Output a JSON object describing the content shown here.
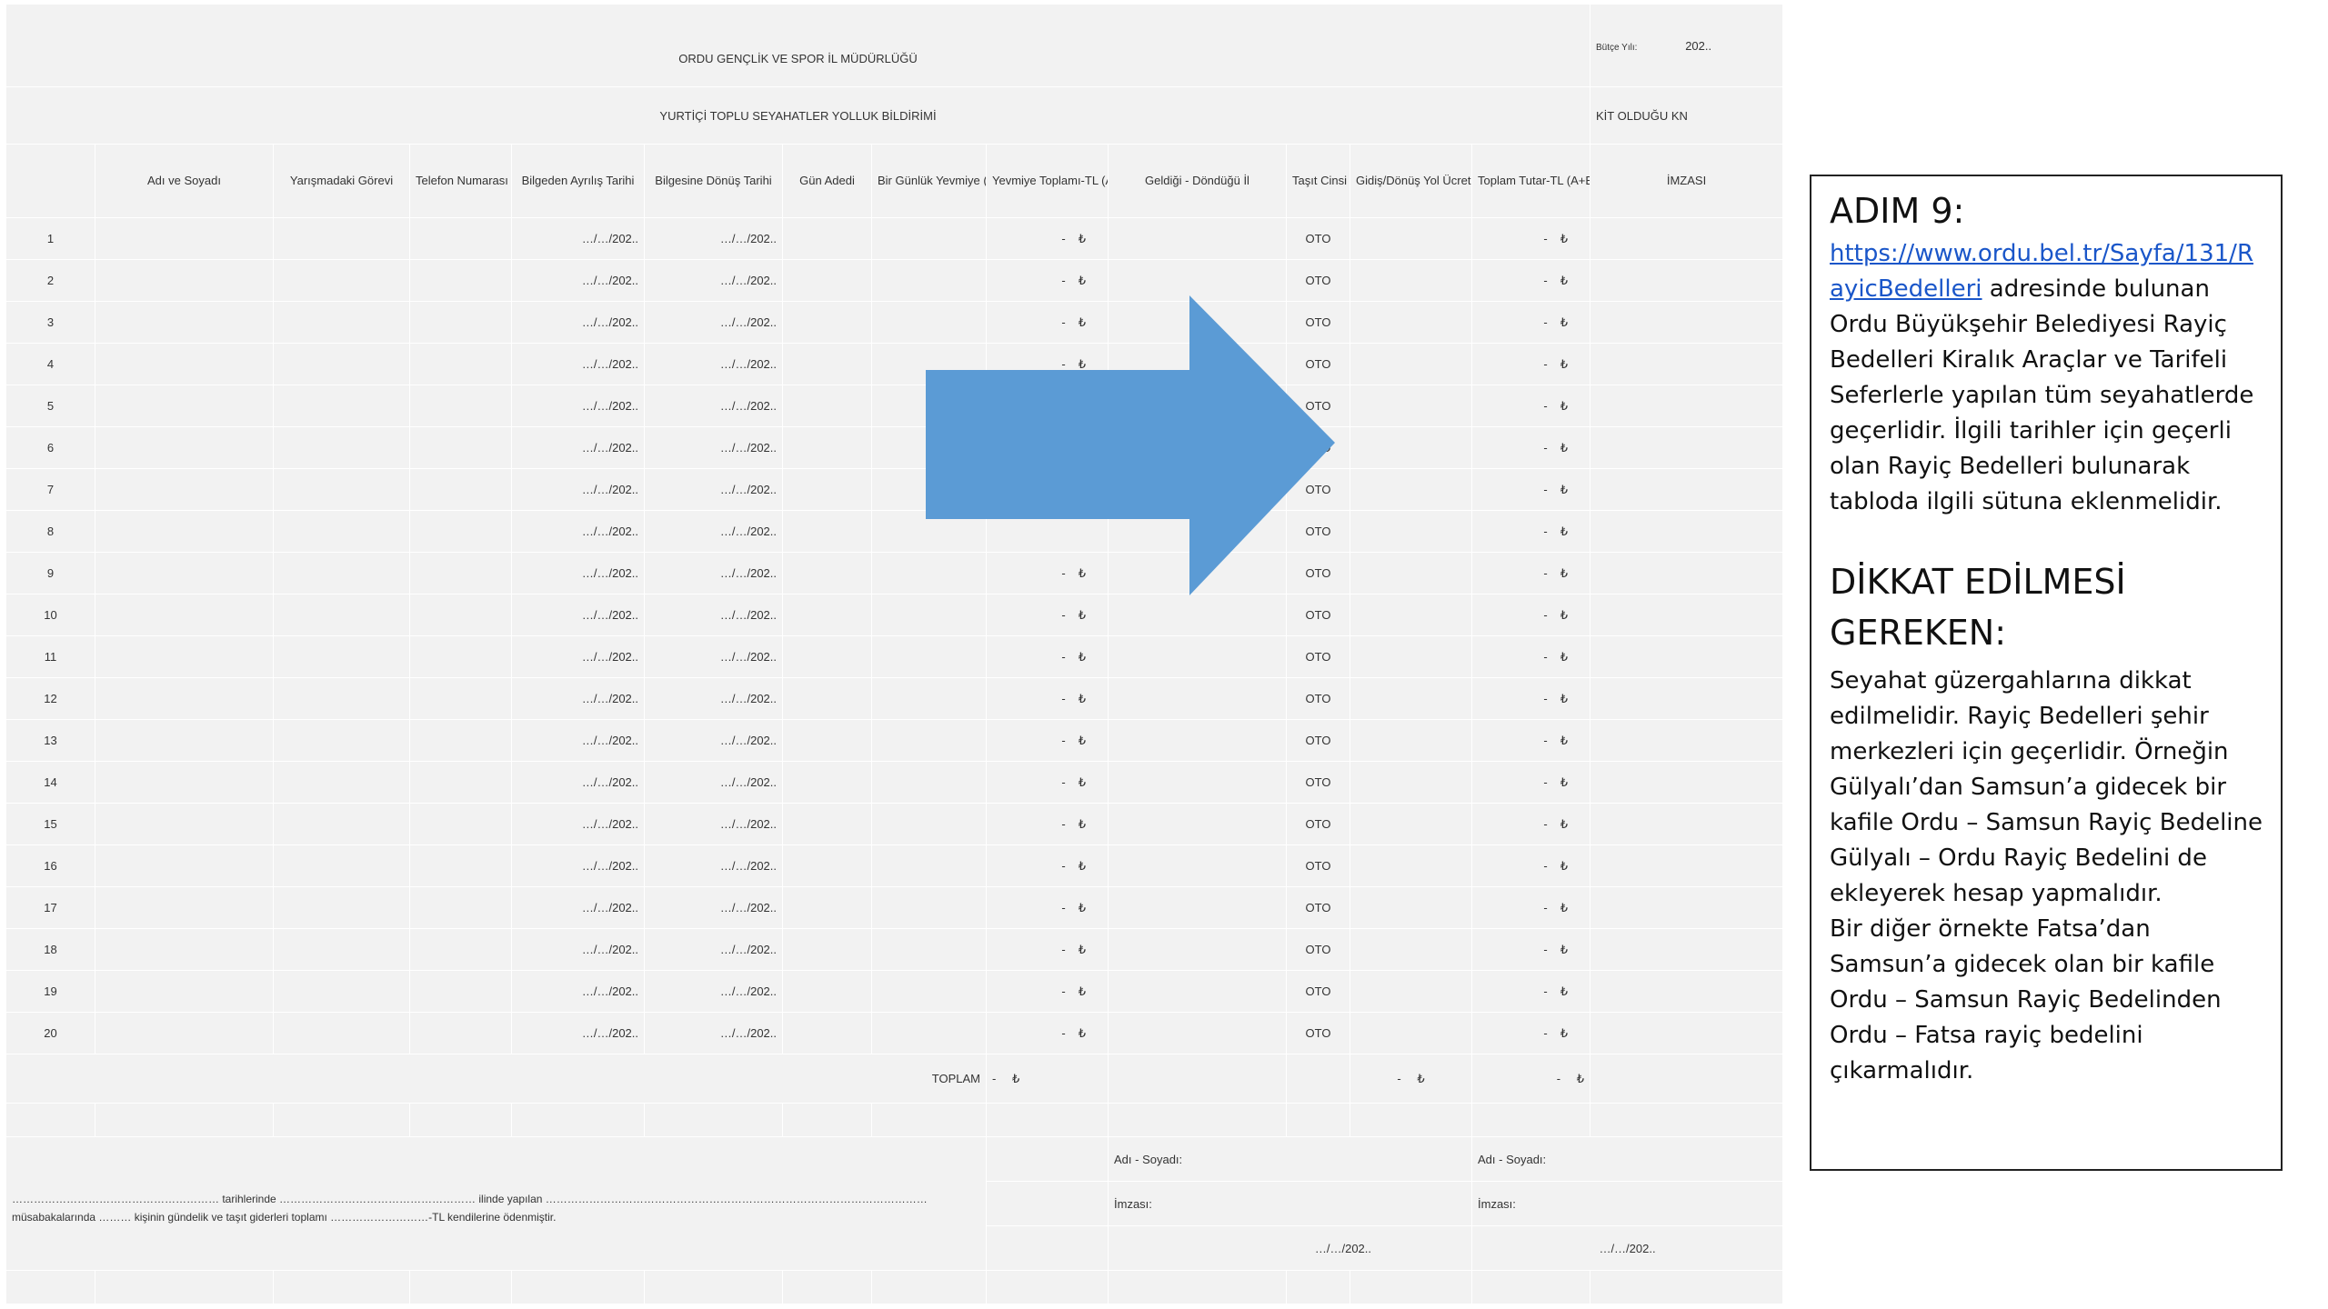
{
  "form": {
    "title": "ORDU GENÇLİK VE SPOR İL MÜDÜRLÜĞÜ",
    "subtitle": "YURTİÇİ TOPLU SEYAHATLER YOLLUK BİLDİRİMİ",
    "budget_year_label": "Bütçe Yılı:",
    "budget_year_value": "202..",
    "kit_label": "KİT OLDUĞU KN"
  },
  "columns": [
    "",
    "Adı ve Soyadı",
    "Yarışmadaki Görevi",
    "Telefon Numarası",
    "Bilgeden Ayrılış Tarihi",
    "Bilgesine Dönüş Tarihi",
    "Gün Adedi",
    "Bir Günlük Yevmiye (TL)",
    "Yevmiye Toplamı-TL (A)",
    "Geldiği - Döndüğü İl",
    "Taşıt Cinsi",
    "Gidiş/Dönüş Yol Ücreti-TL (B)",
    "Toplam Tutar-TL (A+B)",
    "İMZASI"
  ],
  "rows": [
    {
      "no": "1",
      "dep": "…/…/202..",
      "ret": "…/…/202..",
      "a": "-",
      "a_cur": "₺",
      "vehicle": "OTO",
      "total": "-",
      "total_cur": "₺"
    },
    {
      "no": "2",
      "dep": "…/…/202..",
      "ret": "…/…/202..",
      "a": "-",
      "a_cur": "₺",
      "vehicle": "OTO",
      "total": "-",
      "total_cur": "₺"
    },
    {
      "no": "3",
      "dep": "…/…/202..",
      "ret": "…/…/202..",
      "a": "-",
      "a_cur": "₺",
      "vehicle": "OTO",
      "total": "-",
      "total_cur": "₺"
    },
    {
      "no": "4",
      "dep": "…/…/202..",
      "ret": "…/…/202..",
      "a": "-",
      "a_cur": "₺",
      "vehicle": "OTO",
      "total": "-",
      "total_cur": "₺"
    },
    {
      "no": "5",
      "dep": "…/…/202..",
      "ret": "…/…/202..",
      "a": "",
      "a_cur": "",
      "vehicle": "OTO",
      "total": "-",
      "total_cur": "₺"
    },
    {
      "no": "6",
      "dep": "…/…/202..",
      "ret": "…/…/202..",
      "a": "",
      "a_cur": "",
      "vehicle": "OTO",
      "total": "-",
      "total_cur": "₺"
    },
    {
      "no": "7",
      "dep": "…/…/202..",
      "ret": "…/…/202..",
      "a": "",
      "a_cur": "",
      "vehicle": "OTO",
      "total": "-",
      "total_cur": "₺"
    },
    {
      "no": "8",
      "dep": "…/…/202..",
      "ret": "…/…/202..",
      "a": "",
      "a_cur": "",
      "vehicle": "OTO",
      "total": "-",
      "total_cur": "₺"
    },
    {
      "no": "9",
      "dep": "…/…/202..",
      "ret": "…/…/202..",
      "a": "-",
      "a_cur": "₺",
      "vehicle": "OTO",
      "total": "-",
      "total_cur": "₺"
    },
    {
      "no": "10",
      "dep": "…/…/202..",
      "ret": "…/…/202..",
      "a": "-",
      "a_cur": "₺",
      "vehicle": "OTO",
      "total": "-",
      "total_cur": "₺"
    },
    {
      "no": "11",
      "dep": "…/…/202..",
      "ret": "…/…/202..",
      "a": "-",
      "a_cur": "₺",
      "vehicle": "OTO",
      "total": "-",
      "total_cur": "₺"
    },
    {
      "no": "12",
      "dep": "…/…/202..",
      "ret": "…/…/202..",
      "a": "-",
      "a_cur": "₺",
      "vehicle": "OTO",
      "total": "-",
      "total_cur": "₺"
    },
    {
      "no": "13",
      "dep": "…/…/202..",
      "ret": "…/…/202..",
      "a": "-",
      "a_cur": "₺",
      "vehicle": "OTO",
      "total": "-",
      "total_cur": "₺"
    },
    {
      "no": "14",
      "dep": "…/…/202..",
      "ret": "…/…/202..",
      "a": "-",
      "a_cur": "₺",
      "vehicle": "OTO",
      "total": "-",
      "total_cur": "₺"
    },
    {
      "no": "15",
      "dep": "…/…/202..",
      "ret": "…/…/202..",
      "a": "-",
      "a_cur": "₺",
      "vehicle": "OTO",
      "total": "-",
      "total_cur": "₺"
    },
    {
      "no": "16",
      "dep": "…/…/202..",
      "ret": "…/…/202..",
      "a": "-",
      "a_cur": "₺",
      "vehicle": "OTO",
      "total": "-",
      "total_cur": "₺"
    },
    {
      "no": "17",
      "dep": "…/…/202..",
      "ret": "…/…/202..",
      "a": "-",
      "a_cur": "₺",
      "vehicle": "OTO",
      "total": "-",
      "total_cur": "₺"
    },
    {
      "no": "18",
      "dep": "…/…/202..",
      "ret": "…/…/202..",
      "a": "-",
      "a_cur": "₺",
      "vehicle": "OTO",
      "total": "-",
      "total_cur": "₺"
    },
    {
      "no": "19",
      "dep": "…/…/202..",
      "ret": "…/…/202..",
      "a": "-",
      "a_cur": "₺",
      "vehicle": "OTO",
      "total": "-",
      "total_cur": "₺"
    },
    {
      "no": "20",
      "dep": "…/…/202..",
      "ret": "…/…/202..",
      "a": "-",
      "a_cur": "₺",
      "vehicle": "OTO",
      "total": "-",
      "total_cur": "₺"
    }
  ],
  "summary": {
    "label": "TOPLAM",
    "a_value": "-",
    "a_cur": "₺",
    "b_value": "-",
    "b_cur": "₺",
    "total_value": "-",
    "total_cur": "₺"
  },
  "footer": {
    "line1": "………………………………………………… tarihlerinde ……………………………………………… ilinde yapılan ……………………………………………………………………………………………",
    "line2": "müsabakalarında ……… kişinin gündelik ve taşıt giderleri toplamı ………………………-TL kendilerine ödenmiştir.",
    "left_name_label": "Adı - Soyadı:",
    "left_sign_label": "İmzası:",
    "left_date": "…/…/202..",
    "right_name_label": "Adı - Soyadı:",
    "right_sign_label": "İmzası:",
    "right_date": "…/…/202.."
  },
  "arrow": {
    "color": "#5b9bd5",
    "icon": "right-arrow-icon"
  },
  "info": {
    "step_title": "ADIM 9:",
    "link_text": "https://www.ordu.bel.tr/Sayfa/131/RayicBedelleri",
    "step_text": " adresinde bulunan Ordu Büyükşehir Belediyesi Rayiç Bedelleri Kiralık Araçlar ve Tarifeli Seferlerle yapılan tüm seyahatlerde geçerlidir. İlgili tarihler için geçerli olan Rayiç Bedelleri bulunarak tabloda ilgili sütuna eklenmelidir.",
    "warning_title": "DİKKAT EDİLMESİ GEREKEN:",
    "warning_text_1": "Seyahat güzergahlarına dikkat edilmelidir. Rayiç Bedelleri şehir merkezleri için geçerlidir. Örneğin Gülyalı’dan Samsun’a gidecek bir kafile Ordu – Samsun Rayiç Bedeline Gülyalı – Ordu Rayiç Bedelini de ekleyerek hesap yapmalıdır.",
    "warning_text_2": "Bir diğer örnekte Fatsa’dan Samsun’a gidecek olan bir kafile Ordu – Samsun Rayiç Bedelinden Ordu – Fatsa rayiç bedelini çıkarmalıdır."
  }
}
